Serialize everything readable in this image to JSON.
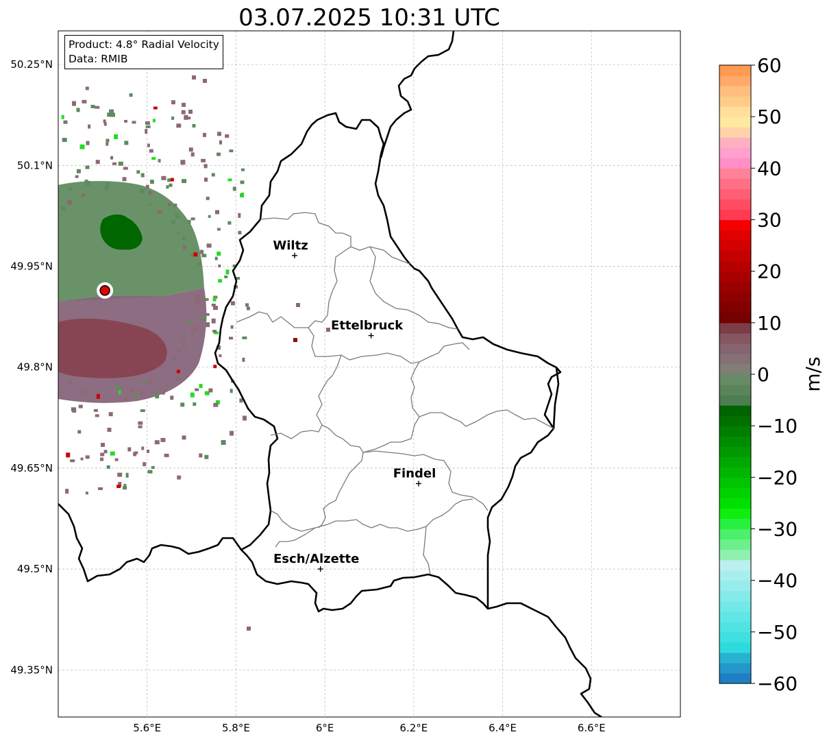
{
  "title": "03.07.2025 10:31 UTC",
  "info": {
    "product": "Product: 4.8° Radial Velocity",
    "data": "Data: RMIB"
  },
  "map_data": {
    "extent": {
      "lon_min": 5.4,
      "lon_max": 6.8,
      "lat_min": 49.28,
      "lat_max": 50.3
    },
    "lat_ticks": [
      {
        "value": 50.25,
        "label": "50.25°N"
      },
      {
        "value": 50.1,
        "label": "50.1°N"
      },
      {
        "value": 49.95,
        "label": "49.95°N"
      },
      {
        "value": 49.8,
        "label": "49.8°N"
      },
      {
        "value": 49.65,
        "label": "49.65°N"
      },
      {
        "value": 49.5,
        "label": "49.5°N"
      },
      {
        "value": 49.35,
        "label": "49.35°N"
      }
    ],
    "lon_ticks": [
      {
        "value": 5.6,
        "label": "5.6°E"
      },
      {
        "value": 5.8,
        "label": "5.8°E"
      },
      {
        "value": 6.0,
        "label": "6°E"
      },
      {
        "value": 6.2,
        "label": "6.2°E"
      },
      {
        "value": 6.4,
        "label": "6.4°E"
      },
      {
        "value": 6.6,
        "label": "6.6°E"
      }
    ],
    "gridlines": true,
    "radar_site": {
      "lon": 5.505,
      "lat": 49.914
    },
    "cities": [
      {
        "name": "Wiltz",
        "lon": 5.932,
        "lat": 49.966
      },
      {
        "name": "Ettelbruck",
        "lon": 6.104,
        "lat": 49.847
      },
      {
        "name": "Findel",
        "lon": 6.211,
        "lat": 49.627
      },
      {
        "name": "Esch/Alzette",
        "lon": 5.99,
        "lat": 49.5
      }
    ],
    "velocity_field": {
      "description": "radial velocity returns around radar site",
      "colors": {
        "approaching_light": "#5f8a5f",
        "approaching_strong": "#006400",
        "receding_light": "#8b6a73",
        "receding_strong": "#8b3040",
        "speckle_green": "#22dd22",
        "speckle_red": "#cc0000"
      }
    }
  },
  "colorbar": {
    "label": "m/s",
    "min": -60,
    "max": 60,
    "ticks": [
      {
        "value": 60,
        "label": "60"
      },
      {
        "value": 50,
        "label": "50"
      },
      {
        "value": 40,
        "label": "40"
      },
      {
        "value": 30,
        "label": "30"
      },
      {
        "value": 20,
        "label": "20"
      },
      {
        "value": 10,
        "label": "10"
      },
      {
        "value": 0,
        "label": "0"
      },
      {
        "value": -10,
        "label": "−10"
      },
      {
        "value": -20,
        "label": "−20"
      },
      {
        "value": -30,
        "label": "−30"
      },
      {
        "value": -40,
        "label": "−40"
      },
      {
        "value": -50,
        "label": "−50"
      },
      {
        "value": -60,
        "label": "−60"
      }
    ],
    "stops": [
      {
        "from": -60,
        "to": -58,
        "color": "#1f7fc4"
      },
      {
        "from": -58,
        "to": -56,
        "color": "#2596c9"
      },
      {
        "from": -56,
        "to": -54,
        "color": "#28b2d2"
      },
      {
        "from": -54,
        "to": -52,
        "color": "#2fdade"
      },
      {
        "from": -52,
        "to": -50,
        "color": "#3fe0e0"
      },
      {
        "from": -50,
        "to": -48,
        "color": "#4fe3e3"
      },
      {
        "from": -48,
        "to": -46,
        "color": "#60e6e6"
      },
      {
        "from": -46,
        "to": -44,
        "color": "#72e8e8"
      },
      {
        "from": -44,
        "to": -42,
        "color": "#84eaea"
      },
      {
        "from": -42,
        "to": -40,
        "color": "#97ecec"
      },
      {
        "from": -40,
        "to": -38,
        "color": "#a9eeee"
      },
      {
        "from": -38,
        "to": -36,
        "color": "#bcf0f0"
      },
      {
        "from": -36,
        "to": -34,
        "color": "#90f0b0"
      },
      {
        "from": -34,
        "to": -32,
        "color": "#6cf08c"
      },
      {
        "from": -32,
        "to": -30,
        "color": "#4cf06a"
      },
      {
        "from": -30,
        "to": -28,
        "color": "#28f040"
      },
      {
        "from": -28,
        "to": -26,
        "color": "#10ee10"
      },
      {
        "from": -26,
        "to": -24,
        "color": "#00e000"
      },
      {
        "from": -24,
        "to": -22,
        "color": "#00d200"
      },
      {
        "from": -22,
        "to": -20,
        "color": "#00c400"
      },
      {
        "from": -20,
        "to": -18,
        "color": "#00b600"
      },
      {
        "from": -18,
        "to": -16,
        "color": "#00a800"
      },
      {
        "from": -16,
        "to": -14,
        "color": "#009a00"
      },
      {
        "from": -14,
        "to": -12,
        "color": "#008c00"
      },
      {
        "from": -12,
        "to": -10,
        "color": "#007e00"
      },
      {
        "from": -10,
        "to": -8,
        "color": "#007000"
      },
      {
        "from": -8,
        "to": -6,
        "color": "#006400"
      },
      {
        "from": -6,
        "to": -4,
        "color": "#4f7d52"
      },
      {
        "from": -4,
        "to": -2,
        "color": "#5a845b"
      },
      {
        "from": -2,
        "to": 0,
        "color": "#678b66"
      },
      {
        "from": 0,
        "to": 2,
        "color": "#7f7f76"
      },
      {
        "from": 2,
        "to": 4,
        "color": "#857076"
      },
      {
        "from": 4,
        "to": 6,
        "color": "#856470"
      },
      {
        "from": 6,
        "to": 8,
        "color": "#835660"
      },
      {
        "from": 8,
        "to": 10,
        "color": "#7d3d46"
      },
      {
        "from": 10,
        "to": 12,
        "color": "#740000"
      },
      {
        "from": 12,
        "to": 14,
        "color": "#800000"
      },
      {
        "from": 14,
        "to": 16,
        "color": "#8c0000"
      },
      {
        "from": 16,
        "to": 18,
        "color": "#9a0000"
      },
      {
        "from": 18,
        "to": 20,
        "color": "#a80000"
      },
      {
        "from": 20,
        "to": 22,
        "color": "#b60000"
      },
      {
        "from": 22,
        "to": 24,
        "color": "#c40000"
      },
      {
        "from": 24,
        "to": 26,
        "color": "#d20000"
      },
      {
        "from": 26,
        "to": 28,
        "color": "#e00000"
      },
      {
        "from": 28,
        "to": 30,
        "color": "#f50000"
      },
      {
        "from": 30,
        "to": 32,
        "color": "#ff3a52"
      },
      {
        "from": 32,
        "to": 34,
        "color": "#ff4c62"
      },
      {
        "from": 34,
        "to": 36,
        "color": "#ff5e74"
      },
      {
        "from": 36,
        "to": 38,
        "color": "#ff7086"
      },
      {
        "from": 38,
        "to": 40,
        "color": "#ff8298"
      },
      {
        "from": 40,
        "to": 42,
        "color": "#ff8fc6"
      },
      {
        "from": 42,
        "to": 44,
        "color": "#ffa0cf"
      },
      {
        "from": 44,
        "to": 46,
        "color": "#ffb0c0"
      },
      {
        "from": 46,
        "to": 48,
        "color": "#ffd2aa"
      },
      {
        "from": 48,
        "to": 50,
        "color": "#ffe8a0"
      },
      {
        "from": 50,
        "to": 52,
        "color": "#ffdf9a"
      },
      {
        "from": 52,
        "to": 54,
        "color": "#ffcc88"
      },
      {
        "from": 54,
        "to": 56,
        "color": "#ffbe80"
      },
      {
        "from": 56,
        "to": 58,
        "color": "#ffaa68"
      },
      {
        "from": 58,
        "to": 60,
        "color": "#ff9a50"
      }
    ]
  }
}
